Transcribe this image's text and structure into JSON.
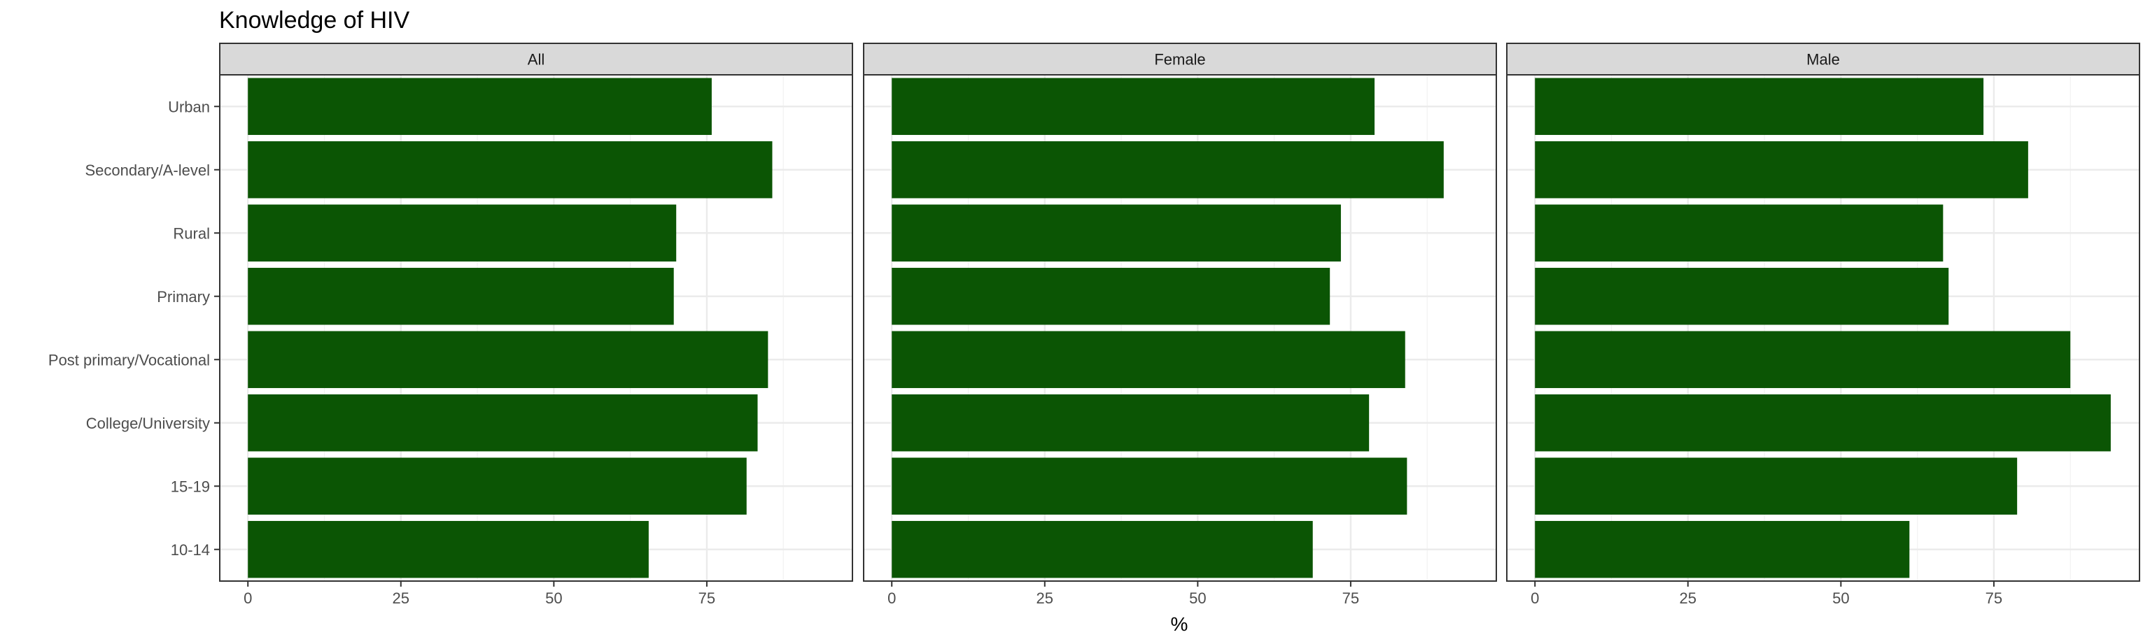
{
  "chart_data": {
    "type": "bar",
    "orientation": "horizontal",
    "title": "Knowledge of HIV",
    "xlabel": "%",
    "ylabel": "",
    "facets": [
      "All",
      "Female",
      "Male"
    ],
    "categories": [
      "10-14",
      "15-19",
      "College/University",
      "Post primary/Vocational",
      "Primary",
      "Rural",
      "Secondary/A-level",
      "Urban"
    ],
    "series": [
      {
        "facet": "All",
        "values": [
          65.5,
          81.5,
          83.3,
          85.0,
          69.6,
          70.0,
          85.7,
          75.8
        ]
      },
      {
        "facet": "Female",
        "values": [
          68.8,
          84.2,
          78.0,
          83.9,
          71.6,
          73.4,
          90.2,
          78.9
        ]
      },
      {
        "facet": "Male",
        "values": [
          61.2,
          78.8,
          94.1,
          87.5,
          67.6,
          66.7,
          80.6,
          73.3
        ]
      }
    ],
    "xticks": [
      0,
      25,
      50,
      75
    ],
    "xlim": [
      -4.6,
      98.8
    ],
    "bar_color": "#0b5504",
    "grid": true,
    "legend": "none"
  }
}
